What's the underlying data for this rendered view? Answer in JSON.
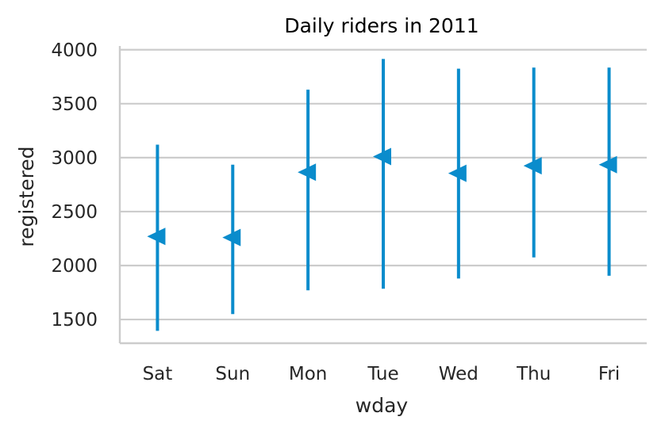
{
  "chart_data": {
    "type": "errorbar",
    "title": "Daily riders in 2011",
    "xlabel": "wday",
    "ylabel": "registered",
    "categories": [
      "Sat",
      "Sun",
      "Mon",
      "Tue",
      "Wed",
      "Thu",
      "Fri"
    ],
    "series": [
      {
        "values": [
          2270,
          2260,
          2865,
          3010,
          2855,
          2925,
          2935
        ],
        "lower": [
          1395,
          1550,
          1770,
          1785,
          1880,
          2075,
          1905
        ],
        "upper": [
          3120,
          2935,
          3630,
          3915,
          3825,
          3835,
          3835
        ]
      }
    ],
    "ylim": [
      1280,
      4035
    ],
    "yticks": [
      1500,
      2000,
      2500,
      3000,
      3500,
      4000
    ],
    "grid": "horizontal",
    "marker": "left-triangle",
    "colors": {
      "series": "#0a8ccc",
      "grid": "#cccccc",
      "axis": "#cccccc",
      "text": "#262626"
    }
  }
}
